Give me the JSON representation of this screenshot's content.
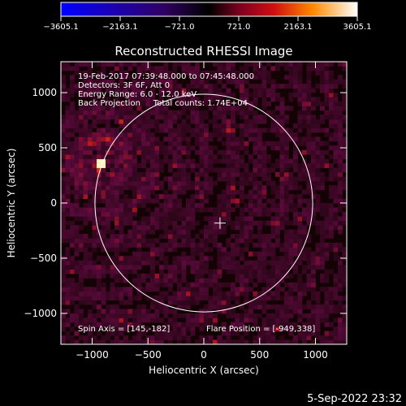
{
  "chart_data": {
    "type": "heatmap",
    "title": "Reconstructed RHESSI Image",
    "xlabel": "Heliocentric X (arcsec)",
    "ylabel": "Heliocentric Y (arcsec)",
    "xlim": [
      -1280,
      1280
    ],
    "ylim": [
      -1280,
      1280
    ],
    "x_ticks": [
      -1000,
      -500,
      0,
      500,
      1000
    ],
    "y_ticks": [
      -1000,
      -500,
      0,
      500,
      1000
    ],
    "colorbar": {
      "min": -3605.1,
      "max": 3605.1,
      "tick_values": [
        -3605.1,
        -2163.1,
        -721.0,
        721.0,
        2163.1,
        3605.1
      ],
      "tick_labels": [
        "−3605.1",
        "−2163.1",
        "−721.0",
        "721.0",
        "2163.1",
        "3605.1"
      ]
    },
    "annotations": [
      "19-Feb-2017 07:39:48.000 to 07:45:48.000",
      "Detectors: 3F 6F, Att 0",
      "Energy Range: 6.0 - 12.0 keV",
      "Back Projection     Total counts: 1.74E+04"
    ],
    "spin_axis_label": "Spin Axis = [145,-182]",
    "flare_position_label": "Flare Position = [-949,338]",
    "spin_axis": [
      145,
      -182
    ],
    "flare_position": [
      -949,
      338
    ],
    "solar_disk_center": [
      0,
      0
    ],
    "solar_disk_radius": 975,
    "grid": false
  },
  "footer": {
    "timestamp": "5-Sep-2022 23:32"
  },
  "colors": {
    "background": "#000000",
    "foreground": "#ffffff"
  }
}
